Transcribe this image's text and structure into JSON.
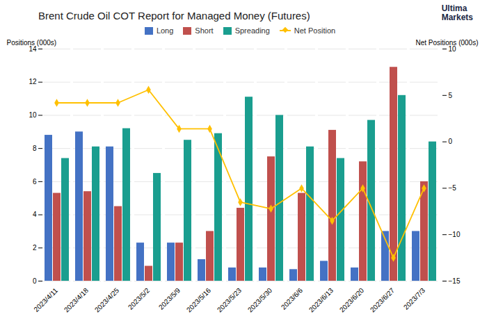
{
  "chart_data": {
    "type": "bar",
    "title": "Brent Crude Oil COT Report for Managed Money (Futures)",
    "categories": [
      "2023/4/11",
      "2023/4/18",
      "2023/4/25",
      "2023/5/2",
      "2023/5/9",
      "2023/5/16",
      "2023/5/23",
      "2023/5/30",
      "2023/6/6",
      "2023/6/13",
      "2023/6/20",
      "2023/6/27",
      "2023/7/3"
    ],
    "series": [
      {
        "name": "Long",
        "color": "#4472c4",
        "values": [
          8.8,
          9.0,
          8.1,
          2.3,
          2.3,
          1.3,
          0.8,
          0.8,
          0.7,
          1.2,
          0.8,
          3.0,
          3.0
        ]
      },
      {
        "name": "Short",
        "color": "#c0504d",
        "values": [
          5.3,
          5.4,
          4.5,
          0.9,
          2.3,
          3.0,
          4.4,
          7.5,
          5.3,
          9.1,
          7.2,
          12.9,
          6.0
        ]
      },
      {
        "name": "Spreading",
        "color": "#1a9e8f",
        "values": [
          7.4,
          8.1,
          9.2,
          6.5,
          8.5,
          8.9,
          11.1,
          10.0,
          8.1,
          7.4,
          9.7,
          11.2,
          8.4
        ]
      },
      {
        "name": "Net Position",
        "color": "#ffc000",
        "type": "line",
        "marker": "diamond",
        "axis": "y2",
        "values": [
          4.2,
          4.2,
          4.2,
          5.6,
          1.4,
          1.4,
          -6.5,
          -7.2,
          -5.0,
          -8.5,
          -5.0,
          -12.5,
          -5.0
        ]
      }
    ],
    "ylim": [
      0,
      14
    ],
    "yticks": [
      0,
      2,
      4,
      6,
      8,
      10,
      12,
      14
    ],
    "y2lim": [
      -15,
      10
    ],
    "y2ticks": [
      -15,
      -10,
      -5,
      0,
      5,
      10
    ],
    "ylabel": "Positions (000s)",
    "y2label": "Net Positions (000s)",
    "grid": true,
    "legend": "top",
    "annotations": [
      "Ultima",
      "Markets"
    ]
  }
}
